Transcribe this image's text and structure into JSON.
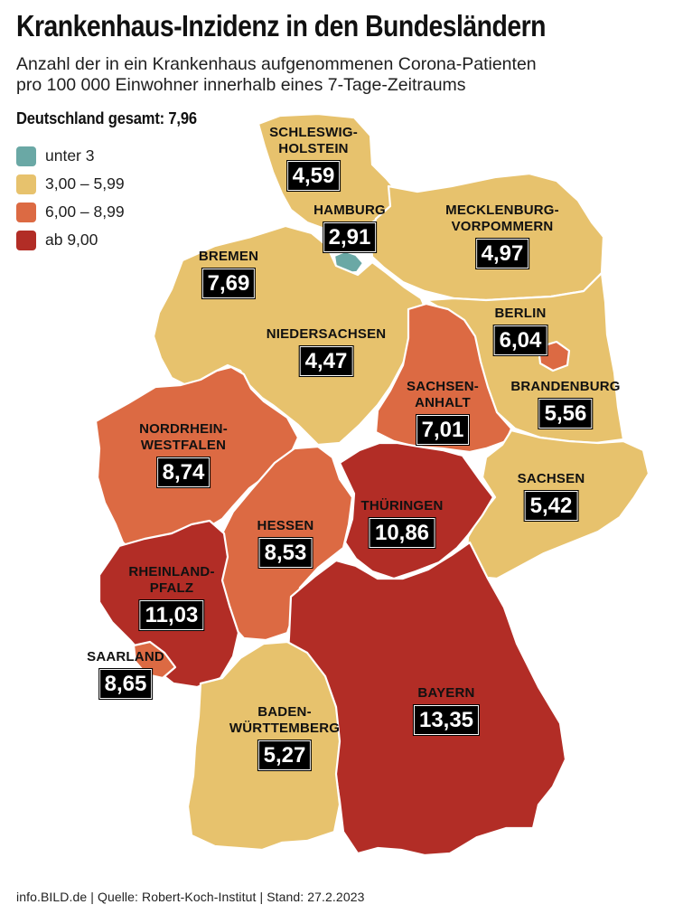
{
  "title": "Krankenhaus-Inzidenz in den Bundesländern",
  "subtitle_lines": [
    "Anzahl der in ein Krankenhaus aufgenommenen Corona-Patienten",
    "pro 100 000 Einwohner innerhalb eines 7-Tage-Zeitraums"
  ],
  "total": "Deutschland gesamt: 7,96",
  "legend": [
    {
      "label": "unter 3",
      "color": "#6aa8a5"
    },
    {
      "label": "3,00 – 5,99",
      "color": "#e7c26d"
    },
    {
      "label": "6,00 – 8,99",
      "color": "#dc6a43"
    },
    {
      "label": "ab 9,00",
      "color": "#b22d26"
    }
  ],
  "states": [
    {
      "id": "sh",
      "name": "SCHLESWIG-\nHOLSTEIN",
      "value": "4,59",
      "color": "#e7c26d"
    },
    {
      "id": "hh",
      "name": "HAMBURG",
      "value": "2,91",
      "color": "#6aa8a5"
    },
    {
      "id": "mv",
      "name": "MECKLENBURG-\nVORPOMMERN",
      "value": "4,97",
      "color": "#e7c26d"
    },
    {
      "id": "hb",
      "name": "BREMEN",
      "value": "7,69",
      "color": "#dc6a43"
    },
    {
      "id": "ni",
      "name": "NIEDERSACHSEN",
      "value": "4,47",
      "color": "#e7c26d"
    },
    {
      "id": "be",
      "name": "BERLIN",
      "value": "6,04",
      "color": "#dc6a43"
    },
    {
      "id": "st",
      "name": "SACHSEN-\nANHALT",
      "value": "7,01",
      "color": "#dc6a43"
    },
    {
      "id": "bb",
      "name": "BRANDENBURG",
      "value": "5,56",
      "color": "#e7c26d"
    },
    {
      "id": "nw",
      "name": "NORDRHEIN-\nWESTFALEN",
      "value": "8,74",
      "color": "#dc6a43"
    },
    {
      "id": "sn",
      "name": "SACHSEN",
      "value": "5,42",
      "color": "#e7c26d"
    },
    {
      "id": "he",
      "name": "HESSEN",
      "value": "8,53",
      "color": "#dc6a43"
    },
    {
      "id": "th",
      "name": "THÜRINGEN",
      "value": "10,86",
      "color": "#b22d26"
    },
    {
      "id": "rp",
      "name": "RHEINLAND-\nPFALZ",
      "value": "11,03",
      "color": "#b22d26"
    },
    {
      "id": "sl",
      "name": "SAARLAND",
      "value": "8,65",
      "color": "#dc6a43"
    },
    {
      "id": "by",
      "name": "BAYERN",
      "value": "13,35",
      "color": "#b22d26"
    },
    {
      "id": "bw",
      "name": "BADEN-\nWÜRTTEMBERG",
      "value": "5,27",
      "color": "#e7c26d"
    }
  ],
  "source": "info.BILD.de | Quelle: Robert-Koch-Institut | Stand: 27.2.2023"
}
